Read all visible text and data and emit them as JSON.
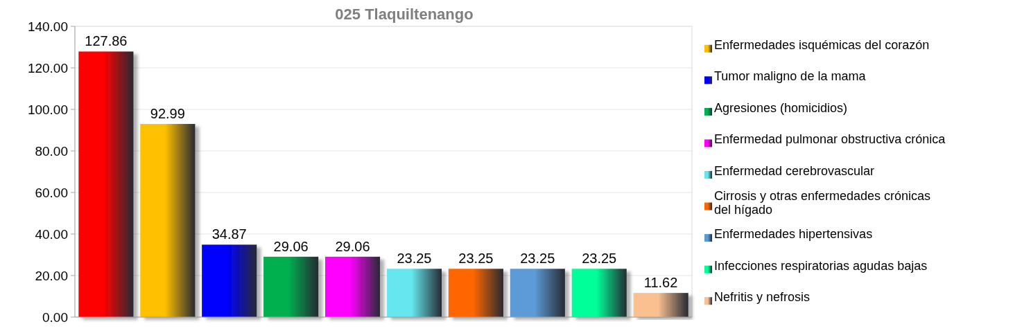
{
  "chart_data": {
    "type": "bar",
    "title": "025 Tlaquiltenango",
    "categories": [
      null,
      null,
      null,
      null,
      null,
      null,
      null,
      null,
      null,
      null
    ],
    "series": [
      {
        "color": "#ff0000",
        "values": [
          127.86,
          null,
          null,
          null,
          null,
          null,
          null,
          null,
          null,
          null
        ]
      },
      {
        "name": "Enfermedades isquémicas del corazón",
        "color": "#ffc000",
        "values": [
          null,
          92.99,
          null,
          null,
          null,
          null,
          null,
          null,
          null,
          null
        ]
      },
      {
        "name": "Tumor maligno de la mama",
        "color": "#0000ff",
        "values": [
          null,
          null,
          34.87,
          null,
          null,
          null,
          null,
          null,
          null,
          null
        ]
      },
      {
        "name": "Agresiones (homicidios)",
        "color": "#00b050",
        "values": [
          null,
          null,
          null,
          29.06,
          null,
          null,
          null,
          null,
          null,
          null
        ]
      },
      {
        "name": "Enfermedad pulmonar obstructiva crónica",
        "color": "#ff00ff",
        "values": [
          null,
          null,
          null,
          null,
          29.06,
          null,
          null,
          null,
          null,
          null
        ]
      },
      {
        "name": "Enfermedad cerebrovascular",
        "color": "#66e6ee",
        "values": [
          null,
          null,
          null,
          null,
          null,
          23.25,
          null,
          null,
          null,
          null
        ]
      },
      {
        "name": "Cirrosis y otras enfermedades crónicas del hígado",
        "color": "#ff6600",
        "values": [
          null,
          null,
          null,
          null,
          null,
          null,
          23.25,
          null,
          null,
          null
        ]
      },
      {
        "name": "Enfermedades hipertensivas",
        "color": "#5b9bd5",
        "values": [
          null,
          null,
          null,
          null,
          null,
          null,
          null,
          23.25,
          null,
          null
        ]
      },
      {
        "name": "Infecciones respiratorias agudas bajas",
        "color": "#00ff99",
        "values": [
          null,
          null,
          null,
          null,
          null,
          null,
          null,
          null,
          23.25,
          null
        ]
      },
      {
        "name": "Nefritis y nefrosis",
        "color": "#fac090",
        "values": [
          null,
          null,
          null,
          null,
          null,
          null,
          null,
          null,
          null,
          11.62
        ]
      }
    ],
    "ylim": [
      0,
      140
    ],
    "yticks": [
      {
        "value": 0,
        "label": "0.00"
      },
      {
        "value": 20,
        "label": "20.00"
      },
      {
        "value": 40,
        "label": "40.00"
      },
      {
        "value": 60,
        "label": "60.00"
      },
      {
        "value": 80,
        "label": "80.00"
      },
      {
        "value": 100,
        "label": "100.00"
      },
      {
        "value": 120,
        "label": "120.00"
      },
      {
        "value": 140,
        "label": "140.00"
      }
    ],
    "grid": "y",
    "legend": "right",
    "data_labels": true
  }
}
